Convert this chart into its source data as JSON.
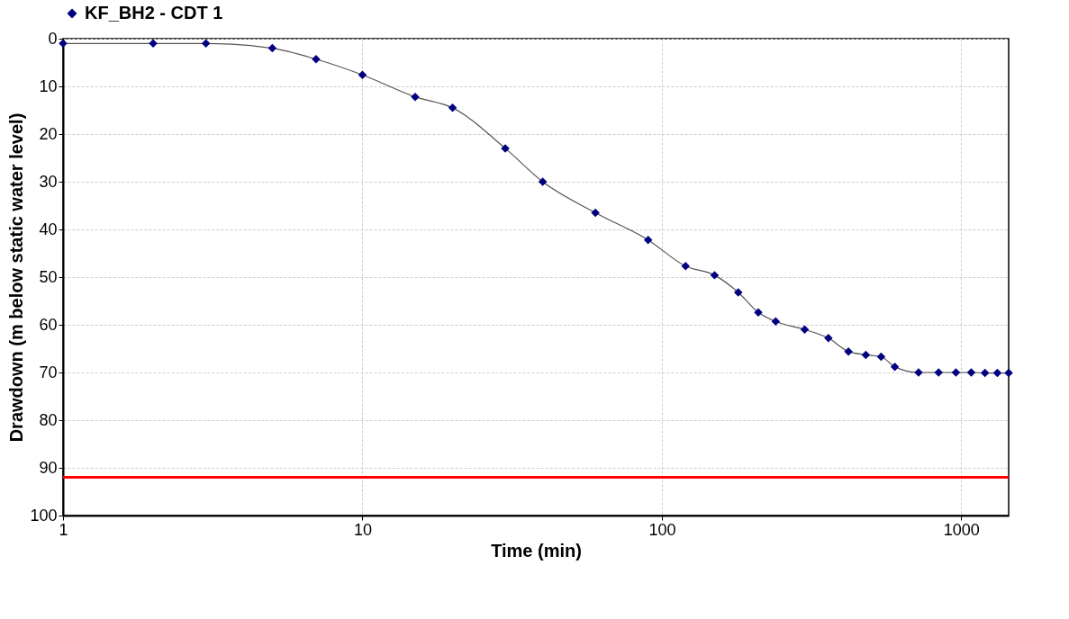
{
  "chart_data": {
    "type": "line",
    "xlabel": "Time (min)",
    "ylabel": "Drawdown (m below static water level)",
    "x": [
      1,
      2,
      3,
      5,
      7,
      10,
      15,
      20,
      30,
      40,
      60,
      90,
      120,
      150,
      180,
      210,
      240,
      300,
      360,
      420,
      480,
      540,
      600,
      720,
      840,
      960,
      1080,
      1200,
      1320,
      1440
    ],
    "series": [
      {
        "name": "KF_BH2 - CDT 1",
        "color": "#000080",
        "values": [
          1,
          1,
          1,
          2,
          4.3,
          7.6,
          12.2,
          14.5,
          23,
          30,
          36.5,
          42.2,
          47.7,
          49.6,
          53.2,
          57.4,
          59.3,
          61,
          62.8,
          65.6,
          66.3,
          66.7,
          68.8,
          70,
          70,
          70,
          70,
          70.1,
          70.1,
          70.1
        ]
      }
    ],
    "xlim": [
      1,
      1440
    ],
    "xticks": [
      1,
      10,
      100,
      1000
    ],
    "ylim": [
      100,
      0
    ],
    "yticks": [
      0,
      10,
      20,
      30,
      40,
      50,
      60,
      70,
      80,
      90,
      100
    ],
    "log": "x",
    "grid": true,
    "legend": "top",
    "marker": "diamond",
    "line_style": "solid",
    "ref_lines": [
      {
        "axis": "y",
        "value": 92,
        "color": "#ff0000"
      }
    ]
  }
}
